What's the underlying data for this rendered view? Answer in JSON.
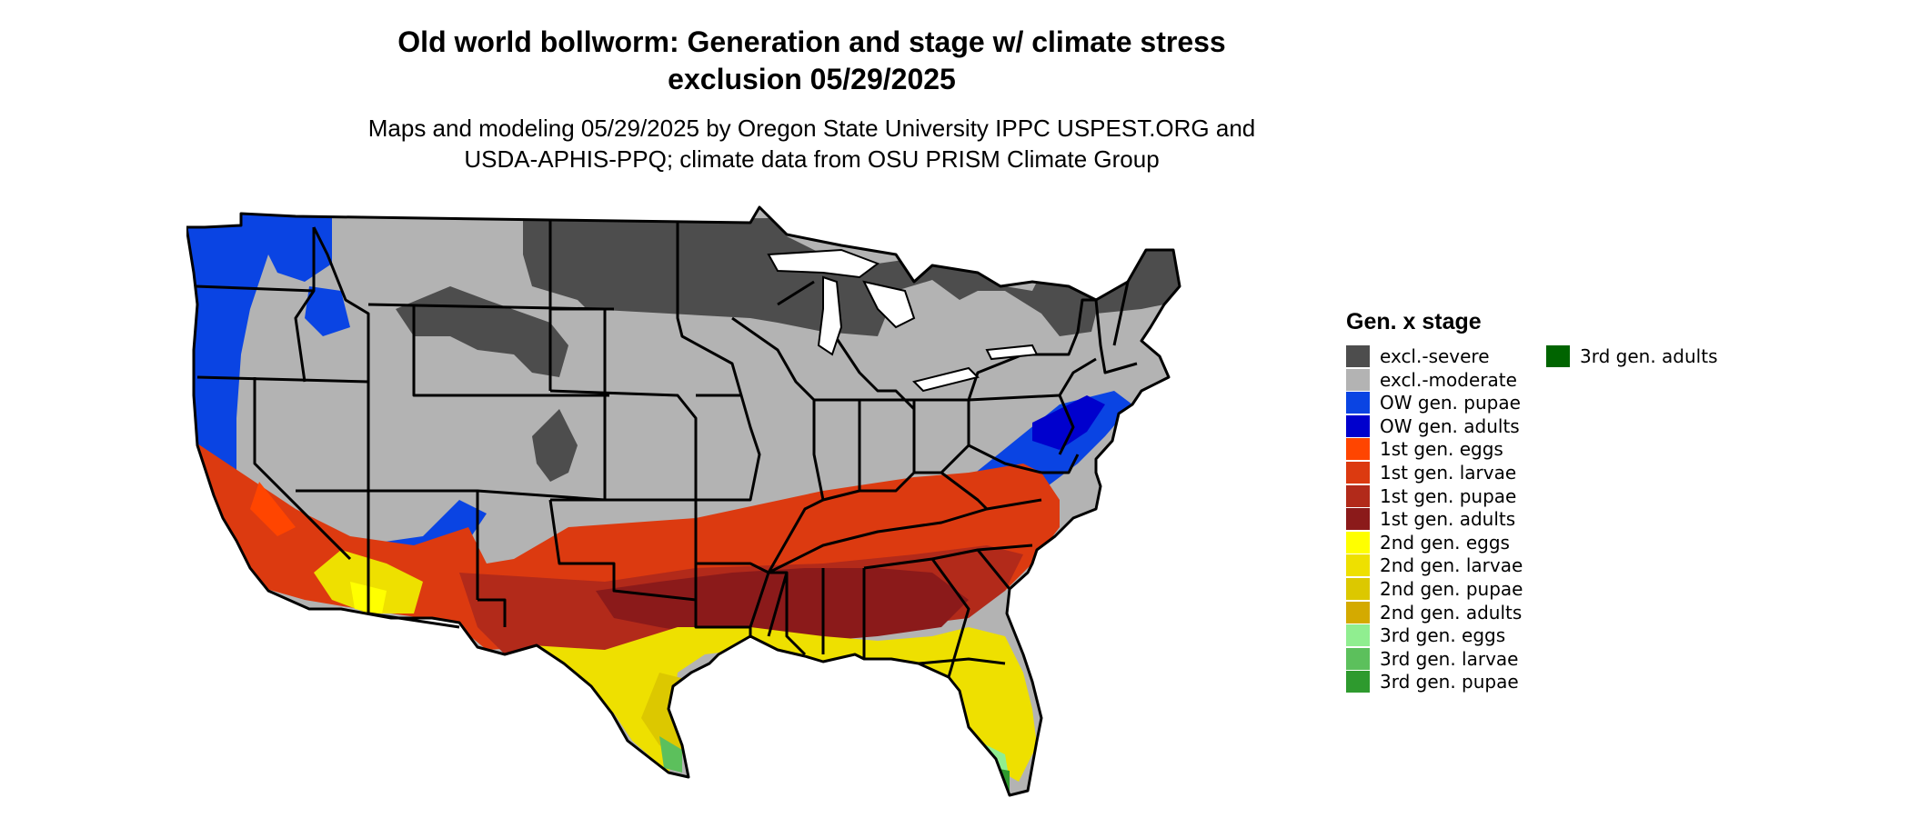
{
  "title_line1": "Old world bollworm: Generation and stage w/ climate stress",
  "title_line2": "exclusion 05/29/2025",
  "subtitle_line1": "Maps and modeling 05/29/2025 by Oregon State University IPPC USPEST.ORG and",
  "subtitle_line2": "USDA-APHIS-PPQ; climate data from OSU PRISM Climate Group",
  "legend": {
    "title": "Gen. x stage",
    "items": [
      {
        "label": "excl.-severe",
        "color": "#4d4d4d"
      },
      {
        "label": "excl.-moderate",
        "color": "#b3b3b3"
      },
      {
        "label": "OW gen. pupae",
        "color": "#0a44e3"
      },
      {
        "label": "OW gen. adults",
        "color": "#0000cd"
      },
      {
        "label": "1st gen. eggs",
        "color": "#ff4500"
      },
      {
        "label": "1st gen. larvae",
        "color": "#dc3a10"
      },
      {
        "label": "1st gen. pupae",
        "color": "#b22a1a"
      },
      {
        "label": "1st gen. adults",
        "color": "#8b1a1a"
      },
      {
        "label": "2nd gen. eggs",
        "color": "#ffff00"
      },
      {
        "label": "2nd gen. larvae",
        "color": "#eee000"
      },
      {
        "label": "2nd gen. pupae",
        "color": "#dcc800"
      },
      {
        "label": "2nd gen. adults",
        "color": "#d4aa00"
      },
      {
        "label": "3rd gen. eggs",
        "color": "#90ee90"
      },
      {
        "label": "3rd gen. larvae",
        "color": "#5cc05c"
      },
      {
        "label": "3rd gen. pupae",
        "color": "#2e9a2e"
      },
      {
        "label": "3rd gen. adults",
        "color": "#006400"
      }
    ]
  }
}
